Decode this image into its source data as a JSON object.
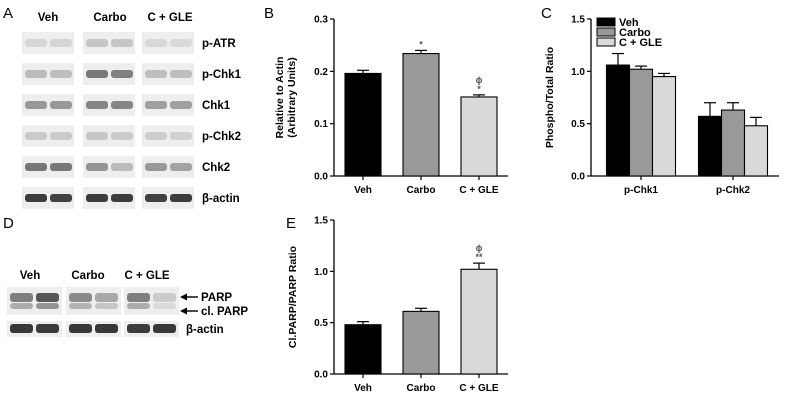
{
  "panel_letters": {
    "A": "A",
    "B": "B",
    "C": "C",
    "D": "D",
    "E": "E"
  },
  "blot_a": {
    "groups": [
      "Veh",
      "Carbo",
      "C + GLE"
    ],
    "rows": [
      {
        "label": "p-ATR",
        "lanes": [
          0.14,
          0.14,
          0.22,
          0.22,
          0.12,
          0.12
        ]
      },
      {
        "label": "p-Chk1",
        "lanes": [
          0.28,
          0.26,
          0.62,
          0.58,
          0.26,
          0.26
        ]
      },
      {
        "label": "Chk1",
        "lanes": [
          0.45,
          0.45,
          0.55,
          0.55,
          0.42,
          0.42
        ]
      },
      {
        "label": "p-Chk2",
        "lanes": [
          0.2,
          0.2,
          0.22,
          0.2,
          0.18,
          0.16
        ]
      },
      {
        "label": "Chk2",
        "lanes": [
          0.62,
          0.62,
          0.48,
          0.28,
          0.45,
          0.4
        ]
      },
      {
        "label": "β-actin",
        "lanes": [
          0.92,
          0.9,
          0.92,
          0.92,
          0.9,
          0.92
        ]
      }
    ]
  },
  "blot_d": {
    "groups": [
      "Veh",
      "Carbo",
      "C + GLE"
    ],
    "parp_lanes": [
      0.55,
      0.75,
      0.5,
      0.35,
      0.55,
      0.18
    ],
    "actin_lanes": [
      0.9,
      0.88,
      0.9,
      0.9,
      0.88,
      0.9
    ],
    "arrow_labels": [
      "PARP",
      "cl. PARP"
    ],
    "actin_label": "β-actin"
  },
  "colors": {
    "black": "#000000",
    "gray": "#999999",
    "light": "#d9d9d9"
  },
  "chart_data": [
    {
      "type": "bar",
      "categories": [
        "Veh",
        "Carbo",
        "C + GLE"
      ],
      "values": [
        0.196,
        0.234,
        0.151
      ],
      "errors": [
        0.006,
        0.006,
        0.004
      ],
      "annotations": [
        "",
        "*",
        "ϕ\n*"
      ],
      "ylabel": "Relative to Actin\n(Arbitrary Units)",
      "ylim": [
        0,
        0.3
      ],
      "yticks": [
        "0.0",
        "0.1",
        "0.2",
        "0.3"
      ]
    },
    {
      "type": "bar",
      "categories": [
        "p-Chk1",
        "p-Chk2"
      ],
      "series": [
        {
          "name": "Veh",
          "values": [
            1.06,
            0.57
          ],
          "errors": [
            0.11,
            0.13
          ]
        },
        {
          "name": "Carbo",
          "values": [
            1.02,
            0.63
          ],
          "errors": [
            0.03,
            0.07
          ]
        },
        {
          "name": "C + GLE",
          "values": [
            0.95,
            0.48
          ],
          "errors": [
            0.03,
            0.08
          ]
        }
      ],
      "ylabel": "Phospho/Total Ratio",
      "ylim": [
        0,
        1.5
      ],
      "yticks": [
        "0.0",
        "0.5",
        "1.0",
        "1.5"
      ],
      "legend": "top-left"
    },
    {
      "type": "bar",
      "categories": [
        "Veh",
        "Carbo",
        "C + GLE"
      ],
      "values": [
        0.48,
        0.61,
        1.02
      ],
      "errors": [
        0.03,
        0.03,
        0.06
      ],
      "annotations": [
        "",
        "",
        "ϕ\n**"
      ],
      "ylabel": "Cl.PARP/PARP Ratio",
      "ylim": [
        0,
        1.5
      ],
      "yticks": [
        "0.0",
        "0.5",
        "1.0",
        "1.5"
      ]
    }
  ]
}
